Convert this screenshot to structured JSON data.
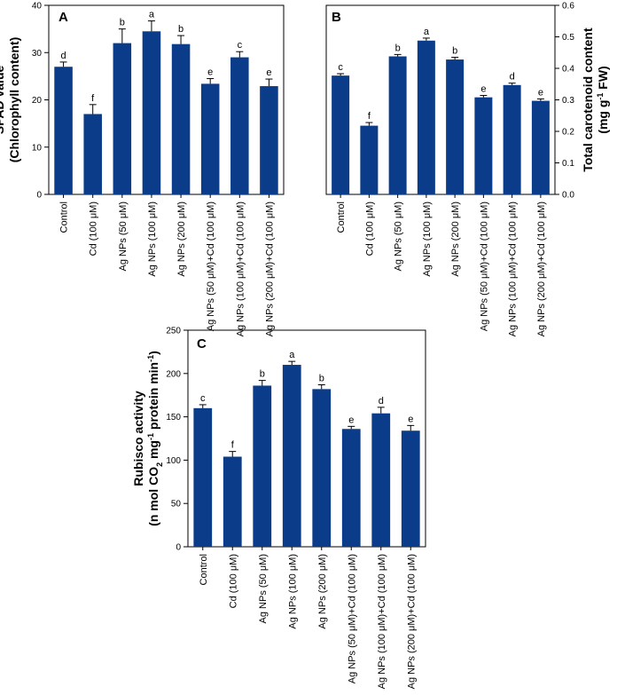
{
  "colors": {
    "bar": "#0b3c8a",
    "axis": "#000000"
  },
  "chart_data": [
    {
      "panel": "A",
      "type": "bar",
      "y_axis_side": "left",
      "ylabel": [
        "SPAD value",
        "(Chlorophyll content)"
      ],
      "ylim": [
        0,
        40
      ],
      "yticks": [
        0,
        10,
        20,
        30,
        40
      ],
      "categories": [
        "Control",
        "Cd (100 μM)",
        "Ag NPs (50 μM)",
        "Ag NPs (100 μM)",
        "Ag NPs (200 μM)",
        "Ag NPs (50 μM)+Cd (100 μM)",
        "Ag NPs (100 μM)+Cd (100 μM)",
        "Ag NPs (200 μM)+Cd (100 μM)"
      ],
      "values": [
        27,
        17,
        32,
        34.5,
        31.8,
        23.4,
        29,
        22.9
      ],
      "errors": [
        1.0,
        2.0,
        3.0,
        2.2,
        1.8,
        1.1,
        1.2,
        1.5
      ],
      "letters": [
        "d",
        "f",
        "b",
        "a",
        "b",
        "e",
        "c",
        "e"
      ]
    },
    {
      "panel": "B",
      "type": "bar",
      "y_axis_side": "right",
      "ylabel": [
        "Total carotenoid content",
        "(mg g-1 FW)"
      ],
      "ylim": [
        0,
        0.6
      ],
      "yticks": [
        0.0,
        0.1,
        0.2,
        0.3,
        0.4,
        0.5,
        0.6
      ],
      "categories": [
        "Control",
        "Cd (100 μM)",
        "Ag NPs (50 μM)",
        "Ag NPs (100 μM)",
        "Ag NPs (200 μM)",
        "Ag NPs (50 μM)+Cd (100 μM)",
        "Ag NPs (100 μM)+Cd (100 μM)",
        "Ag NPs (200 μM)+Cd (100 μM)"
      ],
      "values": [
        0.377,
        0.218,
        0.438,
        0.488,
        0.428,
        0.308,
        0.347,
        0.297
      ],
      "errors": [
        0.006,
        0.01,
        0.006,
        0.008,
        0.007,
        0.006,
        0.006,
        0.006
      ],
      "letters": [
        "c",
        "f",
        "b",
        "a",
        "b",
        "e",
        "d",
        "e"
      ]
    },
    {
      "panel": "C",
      "type": "bar",
      "y_axis_side": "left",
      "ylabel": [
        "Rubisco activity",
        "(n mol CO2 mg-1 protein min-1)"
      ],
      "ylim": [
        0,
        250
      ],
      "yticks": [
        0,
        50,
        100,
        150,
        200,
        250
      ],
      "categories": [
        "Control",
        "Cd (100 μM)",
        "Ag NPs (50 μM)",
        "Ag NPs (100 μM)",
        "Ag NPs (200 μM)",
        "Ag NPs (50 μM)+Cd (100 μM)",
        "Ag NPs (100 μM)+Cd (100 μM)",
        "Ag NPs (200 μM)+Cd (100 μM)"
      ],
      "values": [
        160,
        104,
        186,
        210,
        182,
        136,
        154,
        134
      ],
      "errors": [
        4,
        6,
        6,
        4,
        5,
        3,
        7,
        6
      ],
      "letters": [
        "c",
        "f",
        "b",
        "a",
        "b",
        "e",
        "d",
        "e"
      ]
    }
  ]
}
